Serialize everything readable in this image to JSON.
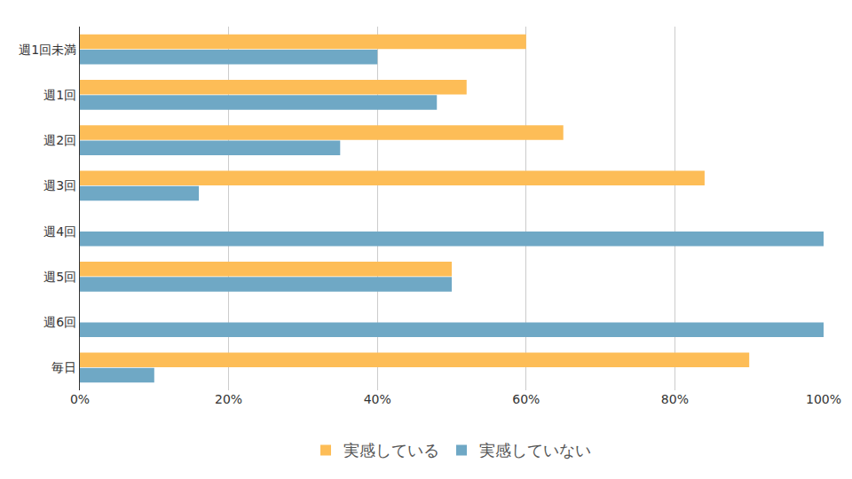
{
  "chart_data": {
    "type": "bar",
    "orientation": "horizontal",
    "categories": [
      "週1回未満",
      "週1回",
      "週2回",
      "週3回",
      "週4回",
      "週5回",
      "週6回",
      "毎日"
    ],
    "series": [
      {
        "name": "実感している",
        "color": "#FDBD57",
        "values": [
          60,
          52,
          65,
          84,
          0,
          50,
          0,
          90
        ]
      },
      {
        "name": "実感していない",
        "color": "#6FA8C5",
        "values": [
          40,
          48,
          35,
          16,
          100,
          50,
          100,
          10
        ]
      }
    ],
    "xlim": [
      0,
      100
    ],
    "xticks": [
      {
        "value": 0,
        "label": "0%"
      },
      {
        "value": 20,
        "label": "20%"
      },
      {
        "value": 40,
        "label": "40%"
      },
      {
        "value": 60,
        "label": "60%"
      },
      {
        "value": 80,
        "label": "80%"
      },
      {
        "value": 100,
        "label": "100%"
      }
    ],
    "grid": true,
    "legend": "bottom"
  }
}
